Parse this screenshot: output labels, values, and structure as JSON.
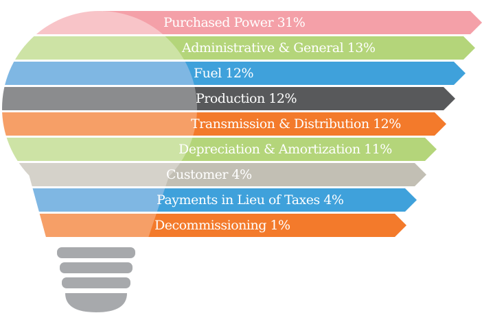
{
  "items": [
    {
      "label": "Purchased Power 31%"
    },
    {
      "label": "Administrative & General 13%"
    },
    {
      "label": "Fuel 12%"
    },
    {
      "label": "Production 12%"
    },
    {
      "label": "Transmission & Distribution 12%"
    },
    {
      "label": "Depreciation & Amortization 11%"
    },
    {
      "label": "Customer 4%"
    },
    {
      "label": "Payments in Lieu of Taxes 4%"
    },
    {
      "label": "Decommissioning 1%"
    }
  ]
}
